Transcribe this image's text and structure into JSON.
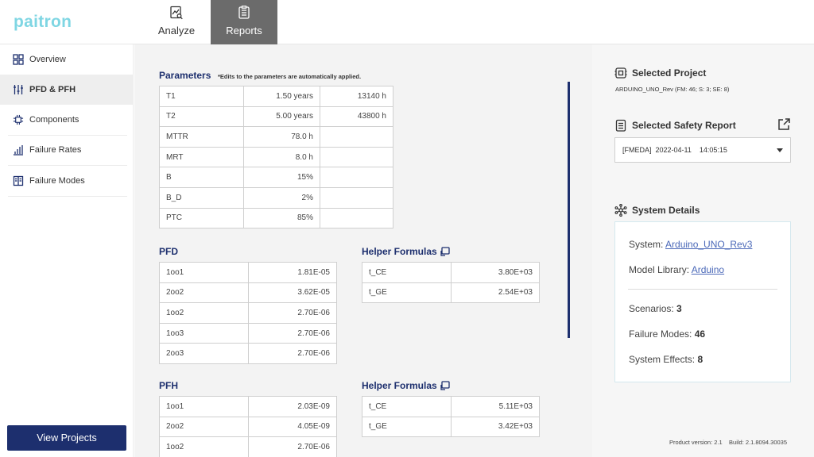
{
  "app": {
    "logo": "paitron"
  },
  "top_tabs": [
    {
      "label": "Analyze",
      "icon": "chart-search-icon",
      "active": false
    },
    {
      "label": "Reports",
      "icon": "report-icon",
      "active": true
    }
  ],
  "sidebar": {
    "items": [
      {
        "label": "Overview",
        "icon": "grid-icon"
      },
      {
        "label": "PFD & PFH",
        "icon": "sliders-icon",
        "active": true
      },
      {
        "label": "Components",
        "icon": "chip-icon"
      },
      {
        "label": "Failure Rates",
        "icon": "bar-chart-icon"
      },
      {
        "label": "Failure Modes",
        "icon": "book-icon"
      }
    ],
    "view_projects_label": "View Projects"
  },
  "parameters": {
    "title": "Parameters",
    "note": "*Edits to the parameters are automatically applied.",
    "rows": [
      {
        "name": "T1",
        "value": "1.50 years",
        "alt": "13140 h"
      },
      {
        "name": "T2",
        "value": "5.00 years",
        "alt": "43800 h"
      },
      {
        "name": "MTTR",
        "value": "78.0 h",
        "alt": ""
      },
      {
        "name": "MRT",
        "value": "8.0 h",
        "alt": ""
      },
      {
        "name": "B",
        "value": "15%",
        "alt": ""
      },
      {
        "name": "B_D",
        "value": "2%",
        "alt": ""
      },
      {
        "name": "PTC",
        "value": "85%",
        "alt": ""
      }
    ]
  },
  "pfd": {
    "title": "PFD",
    "rows": [
      {
        "name": "1oo1",
        "value": "1.81E-05"
      },
      {
        "name": "2oo2",
        "value": "3.62E-05"
      },
      {
        "name": "1oo2",
        "value": "2.70E-06"
      },
      {
        "name": "1oo3",
        "value": "2.70E-06"
      },
      {
        "name": "2oo3",
        "value": "2.70E-06"
      }
    ]
  },
  "pfd_helper": {
    "title": "Helper Formulas",
    "rows": [
      {
        "name": "t_CE",
        "value": "3.80E+03"
      },
      {
        "name": "t_GE",
        "value": "2.54E+03"
      }
    ]
  },
  "pfh": {
    "title": "PFH",
    "rows": [
      {
        "name": "1oo1",
        "value": "2.03E-09"
      },
      {
        "name": "2oo2",
        "value": "4.05E-09"
      },
      {
        "name": "1oo2",
        "value": "2.70E-06"
      }
    ]
  },
  "pfh_helper": {
    "title": "Helper Formulas",
    "rows": [
      {
        "name": "t_CE",
        "value": "5.11E+03"
      },
      {
        "name": "t_GE",
        "value": "3.42E+03"
      }
    ]
  },
  "right_panel": {
    "selected_project_title": "Selected Project",
    "selected_project_value": "ARDUINO_UNO_Rev (FM: 46; S: 3; SE: 8)",
    "safety_report_title": "Selected Safety Report",
    "safety_report_value": "[FMEDA]  2022-04-11    14:05:15",
    "system_details_title": "System Details",
    "system_label": "System:",
    "system_value": "Arduino_UNO_Rev3",
    "model_library_label": "Model Library:",
    "model_library_value": "Arduino",
    "scenarios_label": "Scenarios:",
    "scenarios_value": "3",
    "failure_modes_label": "Failure Modes:",
    "failure_modes_value": "46",
    "system_effects_label": "System Effects:",
    "system_effects_value": "8",
    "version_text": "Product version: 2.1    Build: 2.1.8094.30035"
  },
  "colors": {
    "accent": "#1d2f6e",
    "logo": "#7fd6e3",
    "link": "#4a68b8",
    "active_tab": "#6b6b6b"
  }
}
